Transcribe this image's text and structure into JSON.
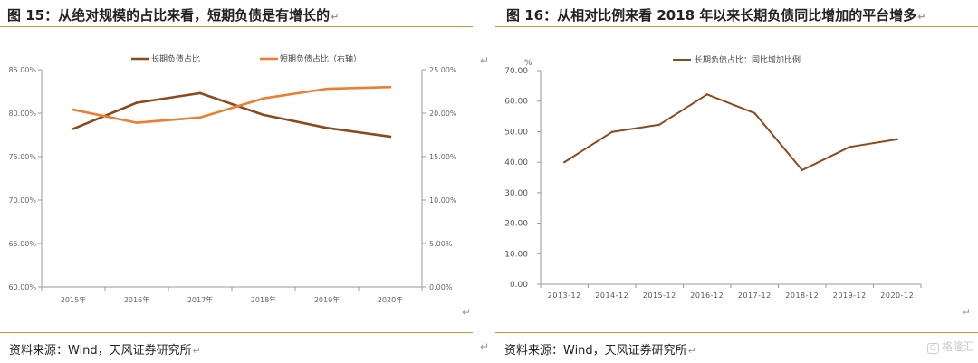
{
  "left": {
    "title": "图 15：从绝对规模的占比来看，短期负债是有增长的",
    "source": "资料来源：Wind，天风证券研究所"
  },
  "right": {
    "title": "图 16：从相对比例来看 2018 年以来长期负债同比增加的平台增多",
    "source": "资料来源：Wind，天风证券研究所"
  },
  "watermark": "格隆汇",
  "colors": {
    "long": "#8b4a1c",
    "short": "#ed7d31",
    "rule": "#e08a3b"
  },
  "chart_data": [
    {
      "type": "line",
      "categories": [
        "2015年",
        "2016年",
        "2017年",
        "2018年",
        "2019年",
        "2020年"
      ],
      "series": [
        {
          "name": "长期负债占比",
          "axis": "left",
          "values": [
            78.2,
            81.2,
            82.3,
            79.8,
            78.3,
            77.3
          ]
        },
        {
          "name": "短期负债占比（右轴）",
          "axis": "right",
          "values": [
            20.4,
            18.9,
            19.5,
            21.7,
            22.8,
            23.0
          ]
        }
      ],
      "ylim": [
        60,
        85
      ],
      "y_ticks": [
        "60.00%",
        "65.00%",
        "70.00%",
        "75.00%",
        "80.00%",
        "85.00%"
      ],
      "y2lim": [
        0,
        25
      ],
      "y2_ticks": [
        "0.00%",
        "5.00%",
        "10.00%",
        "15.00%",
        "20.00%",
        "25.00%"
      ],
      "legend": "top",
      "grid": false
    },
    {
      "type": "line",
      "categories": [
        "2013-12",
        "2014-12",
        "2015-12",
        "2016-12",
        "2017-12",
        "2018-12",
        "2019-12",
        "2020-12"
      ],
      "series": [
        {
          "name": "长期负债占比：同比增加比例",
          "values": [
            40.0,
            49.9,
            52.3,
            62.2,
            56.1,
            37.4,
            45.0,
            47.5
          ]
        }
      ],
      "ylabel": "%",
      "ylim": [
        0,
        70
      ],
      "y_ticks": [
        "0.00",
        "10.00",
        "20.00",
        "30.00",
        "40.00",
        "50.00",
        "60.00",
        "70.00"
      ],
      "legend": "top",
      "grid": false
    }
  ]
}
